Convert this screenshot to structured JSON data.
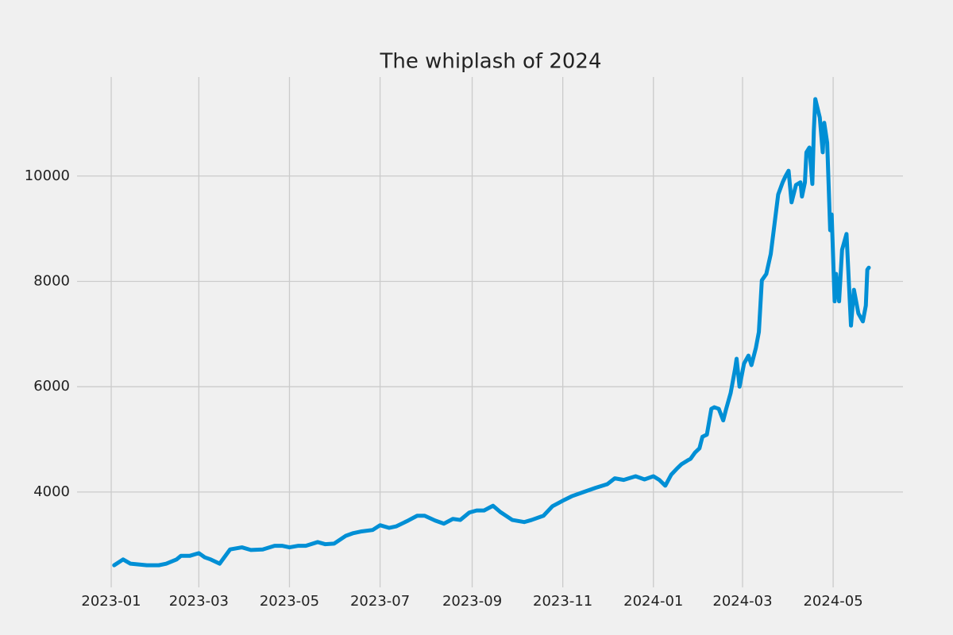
{
  "chart_data": {
    "type": "line",
    "title": "The whiplash of 2024",
    "x": [
      19360,
      19366,
      19371,
      19382,
      19390,
      19395,
      19402,
      19405,
      19411,
      19417,
      19421,
      19425,
      19431,
      19438,
      19446,
      19452,
      19460,
      19468,
      19473,
      19478,
      19484,
      19489,
      19497,
      19502,
      19508,
      19516,
      19521,
      19526,
      19534,
      19539,
      19545,
      19550,
      19558,
      19564,
      19569,
      19576,
      19582,
      19588,
      19593,
      19599,
      19604,
      19609,
      19615,
      19620,
      19628,
      19636,
      19641,
      19649,
      19655,
      19663,
      19668,
      19676,
      19684,
      19692,
      19697,
      19703,
      19711,
      19717,
      19723,
      19727,
      19731,
      19735,
      19739,
      19742,
      19746,
      19748,
      19751,
      19754,
      19756,
      19759,
      19762,
      19764,
      19767,
      19770,
      19772,
      19775,
      19778,
      19779,
      19781,
      19784,
      19787,
      19789,
      19792,
      19794,
      19796,
      19799,
      19802,
      19804,
      19807,
      19810,
      19812,
      19814,
      19816,
      19819,
      19822,
      19823,
      19825,
      19826,
      19828,
      19830,
      19831,
      19832,
      19835,
      19837,
      19838,
      19840,
      19842,
      19843,
      19845,
      19846,
      19848,
      19850,
      19853,
      19856,
      19858,
      19861,
      19864,
      19866,
      19867,
      19868
    ],
    "values": [
      2610,
      2720,
      2640,
      2610,
      2610,
      2640,
      2720,
      2790,
      2790,
      2840,
      2760,
      2720,
      2640,
      2910,
      2950,
      2900,
      2910,
      2980,
      2980,
      2950,
      2980,
      2980,
      3050,
      3010,
      3020,
      3170,
      3220,
      3250,
      3280,
      3370,
      3320,
      3350,
      3460,
      3550,
      3550,
      3460,
      3400,
      3490,
      3470,
      3610,
      3650,
      3650,
      3740,
      3620,
      3470,
      3430,
      3470,
      3550,
      3730,
      3850,
      3920,
      4000,
      4080,
      4150,
      4260,
      4230,
      4300,
      4240,
      4300,
      4230,
      4120,
      4330,
      4450,
      4530,
      4600,
      4630,
      4750,
      4830,
      5050,
      5090,
      5580,
      5610,
      5580,
      5360,
      5580,
      5880,
      6340,
      6530,
      6000,
      6440,
      6590,
      6410,
      6740,
      7040,
      8020,
      8140,
      8520,
      8970,
      9650,
      9880,
      10000,
      10100,
      9500,
      9830,
      9880,
      9610,
      9880,
      10450,
      10540,
      9850,
      10860,
      11460,
      11110,
      10450,
      11010,
      10630,
      8970,
      9270,
      7620,
      8140,
      7620,
      8600,
      8900,
      7160,
      7840,
      7390,
      7240,
      7540,
      8220,
      8260
    ],
    "color": "#008fd5",
    "xlim": [
      19335,
      19891
    ],
    "xticks": [
      {
        "value": 19358,
        "label": "2023-01"
      },
      {
        "value": 19417,
        "label": "2023-03"
      },
      {
        "value": 19478,
        "label": "2023-05"
      },
      {
        "value": 19539,
        "label": "2023-07"
      },
      {
        "value": 19601,
        "label": "2023-09"
      },
      {
        "value": 19662,
        "label": "2023-11"
      },
      {
        "value": 19723,
        "label": "2024-01"
      },
      {
        "value": 19783,
        "label": "2024-03"
      },
      {
        "value": 19844,
        "label": "2024-05"
      }
    ],
    "ylim": [
      2190,
      11880
    ],
    "yticks": [
      4000,
      6000,
      8000,
      10000
    ],
    "grid": true
  }
}
